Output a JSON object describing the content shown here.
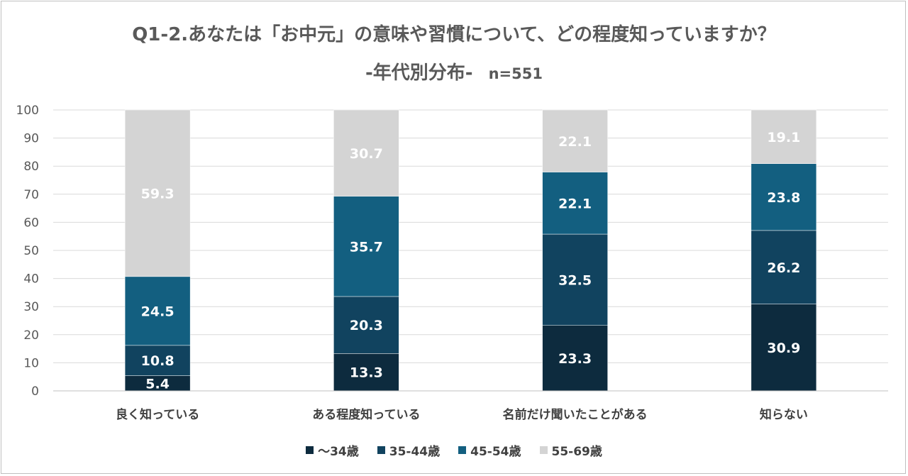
{
  "title_line1": "Q1-2.あなたは「お中元」の意味や習慣について、どの程度知っていますか？",
  "title_line2": "-年代別分布-",
  "sample_size": "n=551",
  "chart_data": {
    "type": "bar",
    "stacked": true,
    "categories": [
      "良く知っている",
      "ある程度知っている",
      "名前だけ聞いたことがある",
      "知らない"
    ],
    "series": [
      {
        "name": "〜34歳",
        "color": "#0d2b3e",
        "values": [
          5.4,
          13.3,
          23.3,
          30.9
        ]
      },
      {
        "name": "35-44歳",
        "color": "#11435f",
        "values": [
          10.8,
          20.3,
          32.5,
          26.2
        ]
      },
      {
        "name": "45-54歳",
        "color": "#135f80",
        "values": [
          24.5,
          35.7,
          22.1,
          23.8
        ]
      },
      {
        "name": "55-69歳",
        "color": "#d4d4d4",
        "values": [
          59.3,
          30.7,
          22.1,
          19.1
        ]
      }
    ],
    "ylim": [
      0,
      100
    ],
    "yticks": [
      0,
      10,
      20,
      30,
      40,
      50,
      60,
      70,
      80,
      90,
      100
    ],
    "grid": true,
    "legend": "bottom"
  }
}
